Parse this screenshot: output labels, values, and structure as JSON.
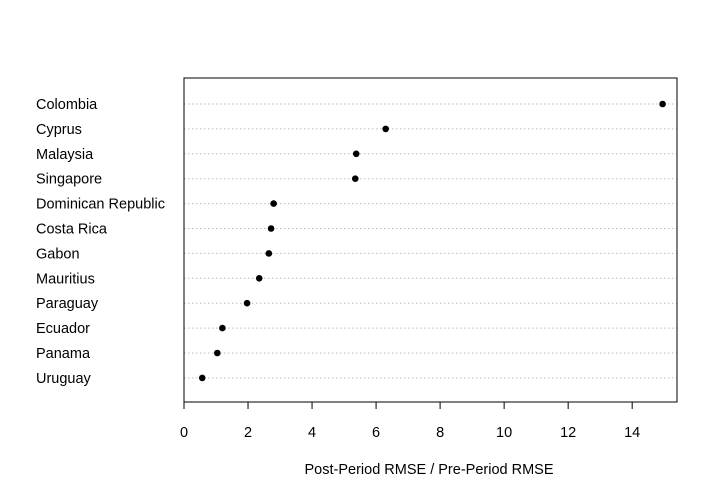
{
  "chart_data": {
    "type": "scatter",
    "style": "dotchart",
    "categories": [
      "Colombia",
      "Cyprus",
      "Malaysia",
      "Singapore",
      "Dominican Republic",
      "Costa Rica",
      "Gabon",
      "Mauritius",
      "Paraguay",
      "Ecuador",
      "Panama",
      "Uruguay"
    ],
    "values": [
      14.95,
      6.3,
      5.38,
      5.35,
      2.8,
      2.72,
      2.65,
      2.35,
      1.97,
      1.2,
      1.04,
      0.57
    ],
    "title": "",
    "xlabel": "Post-Period RMSE / Pre-Period RMSE",
    "ylabel": "",
    "xlim": [
      0,
      15.4
    ],
    "xticks": [
      0,
      2,
      4,
      6,
      8,
      10,
      12,
      14
    ],
    "grid": "horizontal dotted",
    "colors": {
      "point": "#000000",
      "grid": "#bdbdbd",
      "frame": "#000000"
    }
  }
}
